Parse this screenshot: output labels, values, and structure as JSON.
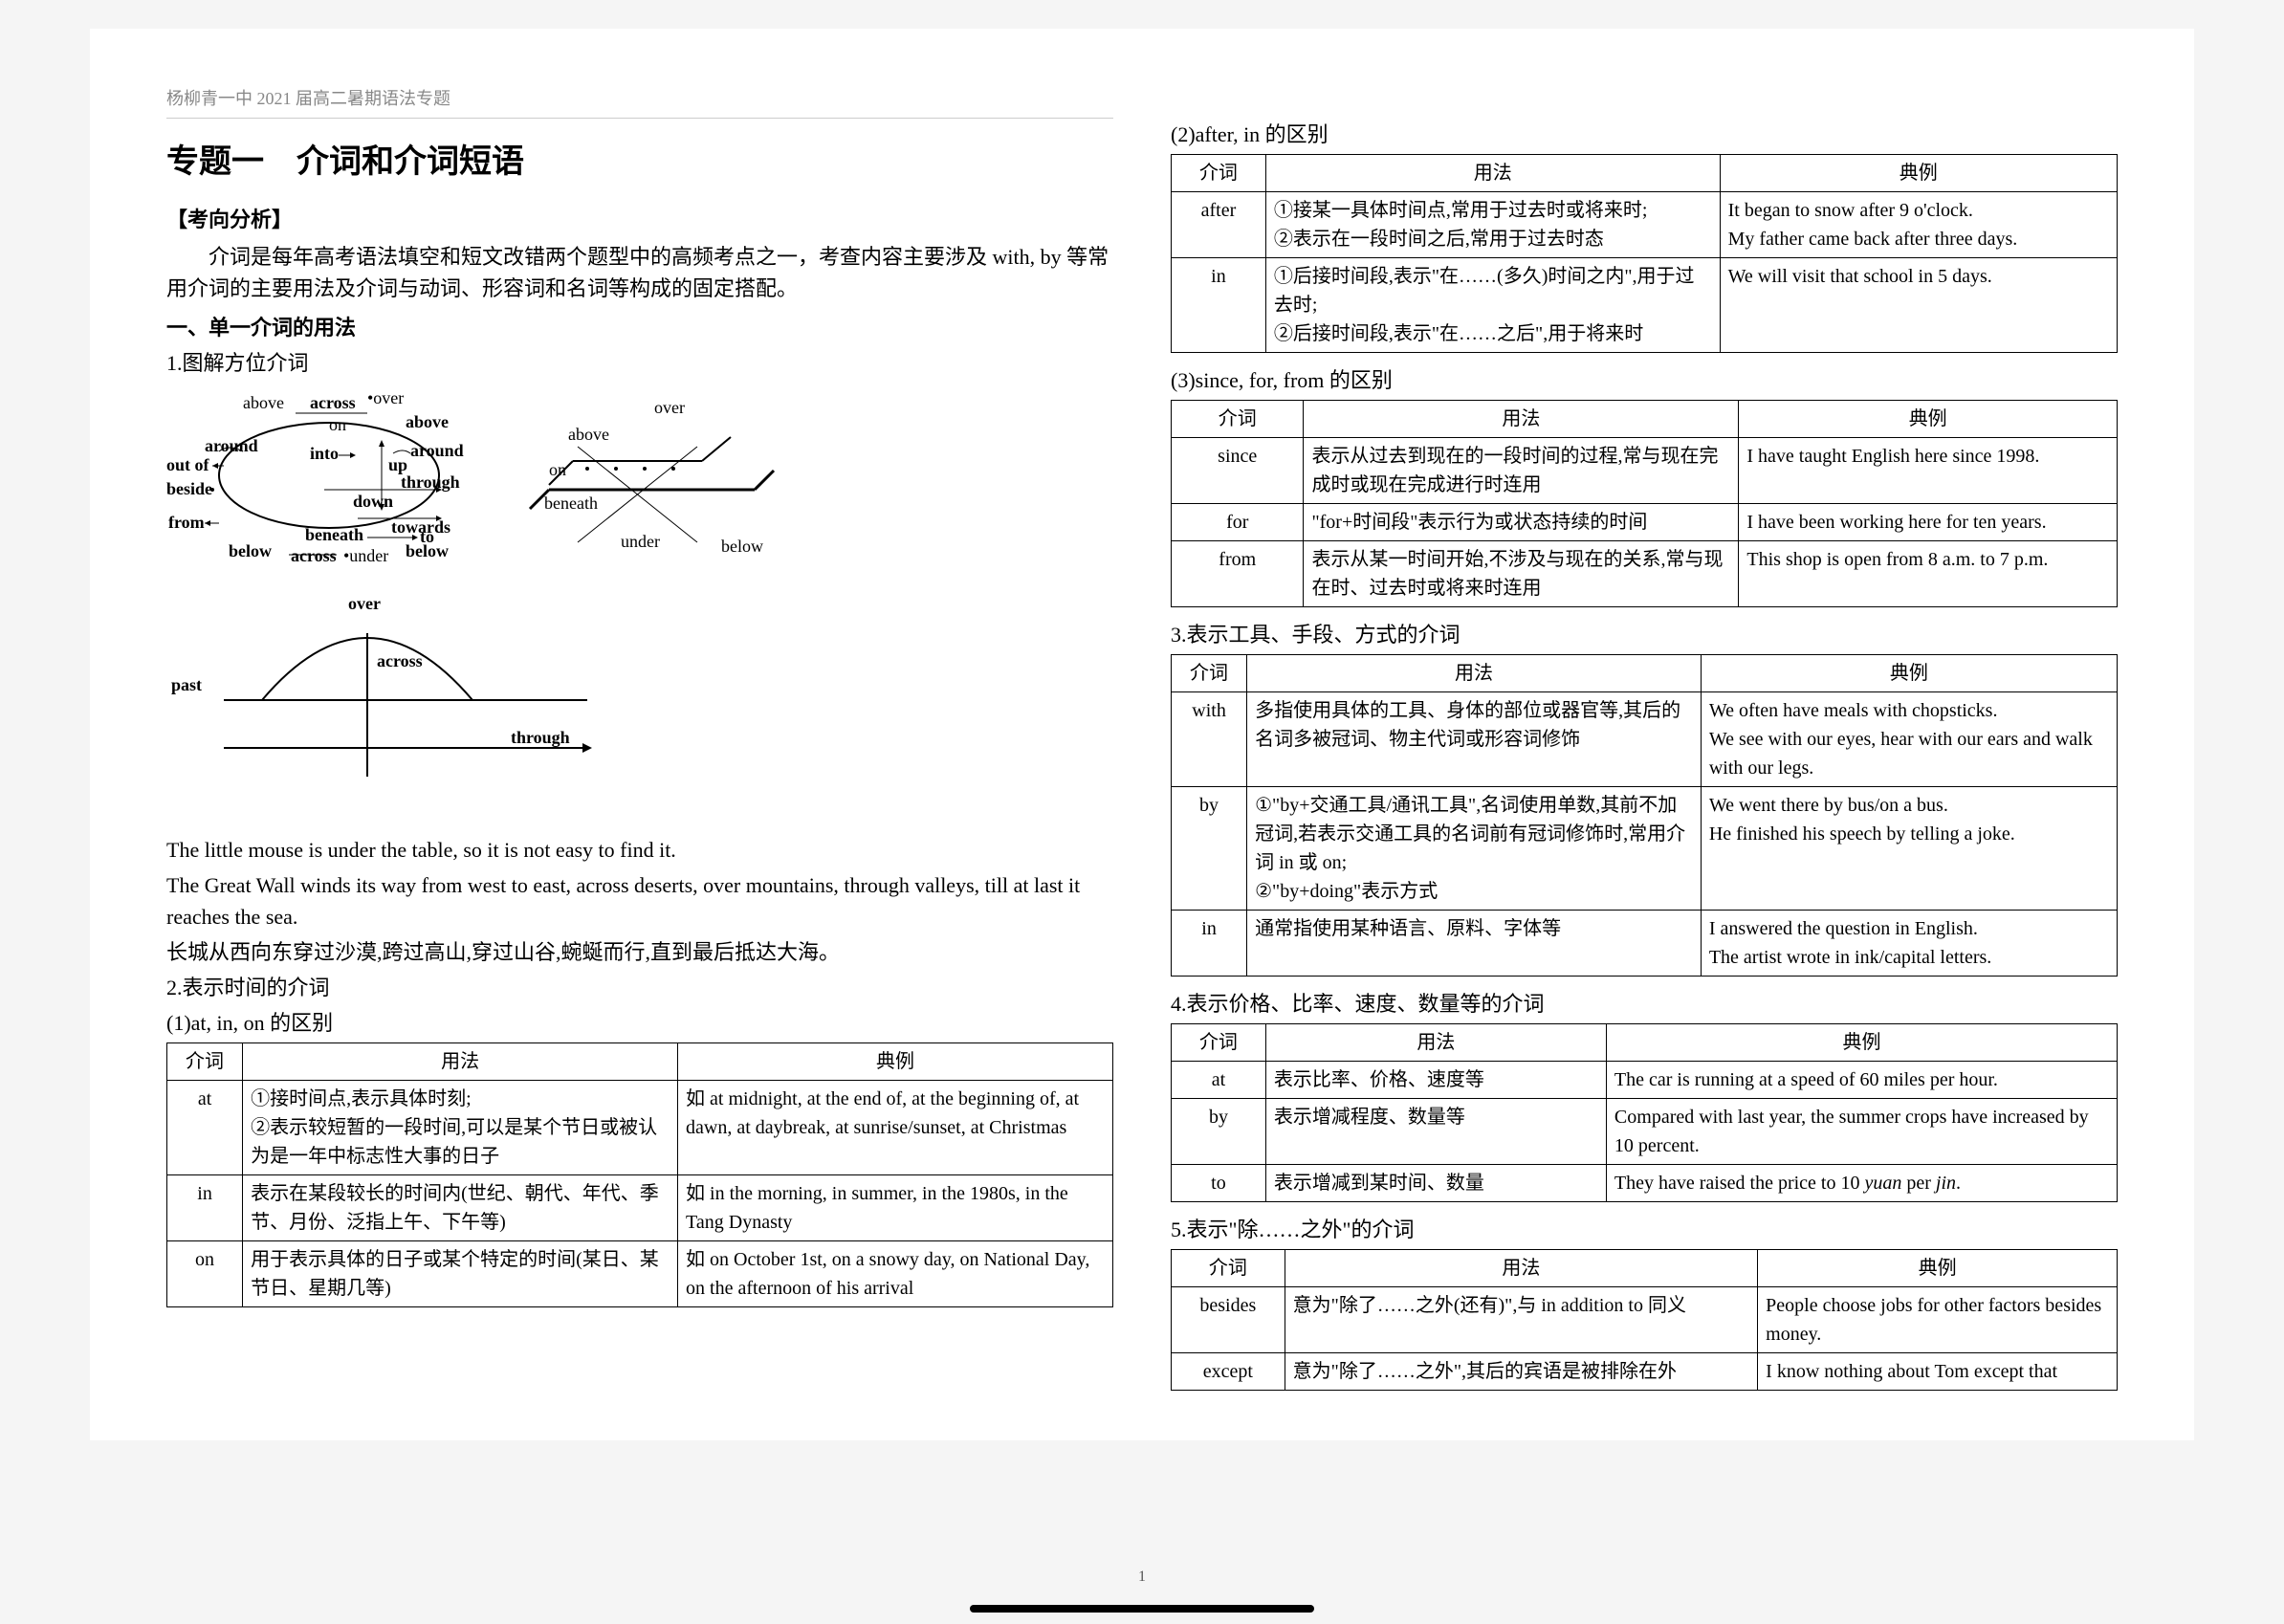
{
  "header": "杨柳青一中 2021 届高二暑期语法专题",
  "title": "专题一　介词和介词短语",
  "analysis_label": "【考向分析】",
  "analysis_text": "介词是每年高考语法填空和短文改错两个题型中的高频考点之一，考查内容主要涉及 with, by 等常用介词的主要用法及介词与动词、形容词和名词等构成的固定搭配。",
  "sec1_head": "一、单一介词的用法",
  "sec1_1": "1.图解方位介词",
  "ex1": "The little mouse is under the table, so it is not easy to find it.",
  "ex2": "The Great Wall winds its way from west to east, across deserts, over mountains, through valleys, till at last it reaches the sea.",
  "ex3": "长城从西向东穿过沙漠,跨过高山,穿过山谷,蜿蜒而行,直到最后抵达大海。",
  "sec1_2": "2.表示时间的介词",
  "sec1_2_1": "(1)at, in, on 的区别",
  "th_prep": "介词",
  "th_usage": "用法",
  "th_example": "典例",
  "t1": {
    "r1c1": "at",
    "r1c2": "①接时间点,表示具体时刻;\n②表示较短暂的一段时间,可以是某个节日或被认为是一年中标志性大事的日子",
    "r1c3": "如 at midnight, at the end of, at the beginning of, at dawn, at daybreak, at sunrise/sunset, at Christmas",
    "r2c1": "in",
    "r2c2": "表示在某段较长的时间内(世纪、朝代、年代、季节、月份、泛指上午、下午等)",
    "r2c3": "如 in the morning, in summer, in the 1980s, in the Tang Dynasty",
    "r3c1": "on",
    "r3c2": "用于表示具体的日子或某个特定的时间(某日、某节日、星期几等)",
    "r3c3": "如 on October 1st, on a snowy day, on National Day, on the afternoon of his arrival"
  },
  "sec1_2_2": "(2)after, in 的区别",
  "t2": {
    "r1c1": "after",
    "r1c2": "①接某一具体时间点,常用于过去时或将来时;\n②表示在一段时间之后,常用于过去时态",
    "r1c3": "It began to snow after 9 o'clock.\nMy father came back after three days.",
    "r2c1": "in",
    "r2c2": "①后接时间段,表示\"在……(多久)时间之内\",用于过去时;\n②后接时间段,表示\"在……之后\",用于将来时",
    "r2c3": "We will visit that school in 5 days."
  },
  "sec1_2_3": "(3)since, for, from 的区别",
  "t3": {
    "r1c1": "since",
    "r1c2": "表示从过去到现在的一段时间的过程,常与现在完成时或现在完成进行时连用",
    "r1c3": "I have taught English here since 1998.",
    "r2c1": "for",
    "r2c2": "\"for+时间段\"表示行为或状态持续的时间",
    "r2c3": "I have been working here for ten years.",
    "r3c1": "from",
    "r3c2": "表示从某一时间开始,不涉及与现在的关系,常与现在时、过去时或将来时连用",
    "r3c3": "This shop is open from 8 a.m. to 7 p.m."
  },
  "sec1_3": "3.表示工具、手段、方式的介词",
  "t4": {
    "r1c1": "with",
    "r1c2": "多指使用具体的工具、身体的部位或器官等,其后的名词多被冠词、物主代词或形容词修饰",
    "r1c3": "We often have meals with chopsticks.\nWe see with our eyes, hear with our ears and walk with our legs.",
    "r2c1": "by",
    "r2c2": "①\"by+交通工具/通讯工具\",名词使用单数,其前不加冠词,若表示交通工具的名词前有冠词修饰时,常用介词 in 或 on;\n②\"by+doing\"表示方式",
    "r2c3": "We went there by bus/on a bus.\nHe finished his speech by telling a joke.",
    "r3c1": "in",
    "r3c2": "通常指使用某种语言、原料、字体等",
    "r3c3": "I answered the question in English.\nThe artist wrote in ink/capital letters."
  },
  "sec1_4": "4.表示价格、比率、速度、数量等的介词",
  "t5": {
    "r1c1": "at",
    "r1c2": "表示比率、价格、速度等",
    "r1c3": "The car is running at a speed of 60 miles per hour.",
    "r2c1": "by",
    "r2c2": "表示增减程度、数量等",
    "r2c3": "Compared with last year, the summer crops have increased by 10 percent.",
    "r3c1": "to",
    "r3c2": "表示增减到某时间、数量",
    "r3c3": "They have raised the price to 10 yuan per jin."
  },
  "sec1_5": "5.表示\"除……之外\"的介词",
  "t6": {
    "r1c1": "besides",
    "r1c2": "意为\"除了……之外(还有)\",与 in addition to 同义",
    "r1c3": "People choose jobs for other factors besides money.",
    "r2c1": "except",
    "r2c2": "意为\"除了……之外\",其后的宾语是被排除在外",
    "r2c3": "I know nothing about Tom except that"
  },
  "page_no": "1",
  "diag": {
    "labels": {
      "above1": "above",
      "over1": "•over",
      "across1": "across",
      "on1": "on",
      "above2": "above",
      "around1": "around",
      "outof": "out of",
      "into": "into",
      "around2": "around",
      "up": "up",
      "beside": "beside",
      "through1": "through",
      "down": "down",
      "towards": "towards",
      "from": "from",
      "to": "to",
      "below1": "below",
      "across2": "across",
      "under1": "•under",
      "below2": "below",
      "beneath1": "beneath",
      "over2": "over",
      "above3": "above",
      "on2": "on",
      "beneath2": "beneath",
      "under2": "under",
      "below3": "below",
      "past": "past",
      "over3": "over",
      "across3": "across",
      "through2": "through"
    }
  }
}
